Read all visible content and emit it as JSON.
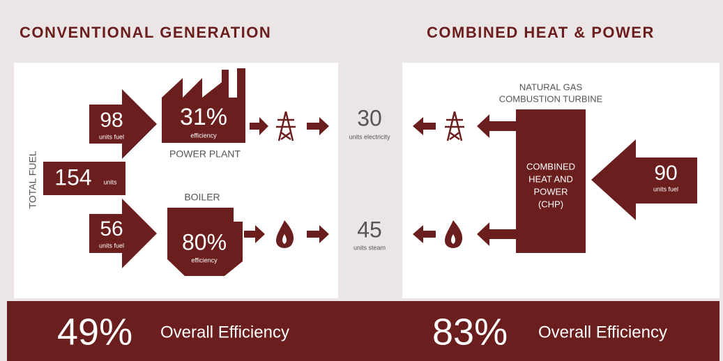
{
  "conventional": {
    "title": "CONVENTIONAL GENERATION",
    "total_fuel": {
      "label": "TOTAL FUEL",
      "value": "154",
      "unit": "units"
    },
    "power_plant": {
      "fuel_value": "98",
      "fuel_unit": "units fuel",
      "efficiency": "31%",
      "efficiency_label": "efficiency",
      "label": "POWER PLANT"
    },
    "boiler": {
      "label": "BOILER",
      "fuel_value": "56",
      "fuel_unit": "units fuel",
      "efficiency": "80%",
      "efficiency_label": "efficiency"
    },
    "overall": {
      "value": "49%",
      "label": "Overall Efficiency"
    }
  },
  "outputs": {
    "electricity": {
      "value": "30",
      "unit": "units electricity"
    },
    "steam": {
      "value": "45",
      "unit": "units steam"
    }
  },
  "chp": {
    "title": "COMBINED HEAT & POWER",
    "turbine_label": [
      "NATURAL GAS",
      "COMBUSTION TURBINE"
    ],
    "box_label": [
      "COMBINED",
      "HEAT AND",
      "POWER",
      "(CHP)"
    ],
    "fuel_value": "90",
    "fuel_unit": "units fuel",
    "overall": {
      "value": "83%",
      "label": "Overall Efficiency"
    }
  }
}
